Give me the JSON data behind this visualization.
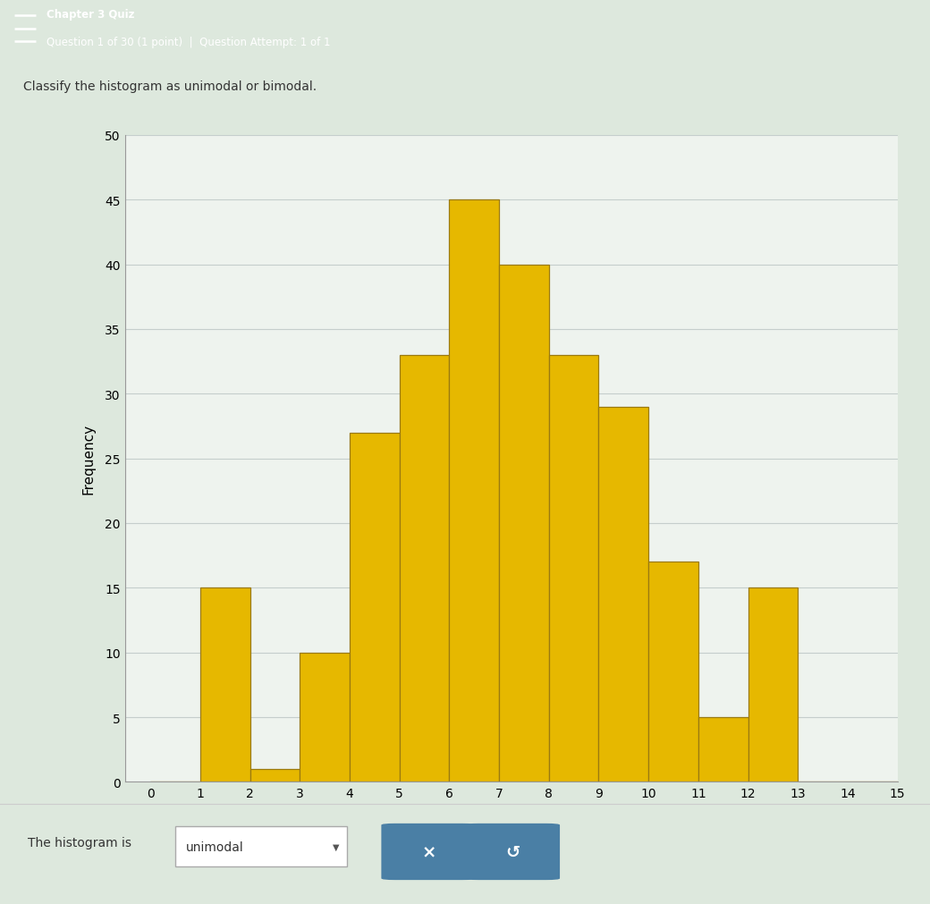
{
  "bar_values": [
    0,
    15,
    1,
    10,
    27,
    33,
    45,
    40,
    33,
    29,
    17,
    5,
    15,
    0,
    0
  ],
  "bar_color": "#E6B800",
  "bar_edge_color": "#9B7A10",
  "x_labels": [
    "0",
    "1",
    "2",
    "3",
    "4",
    "5",
    "6",
    "7",
    "8",
    "9",
    "10",
    "11",
    "12",
    "13",
    "14",
    "15"
  ],
  "y_ticks": [
    0,
    5,
    10,
    15,
    20,
    25,
    30,
    35,
    40,
    45,
    50
  ],
  "y_label": "Frequency",
  "y_max": 50,
  "header_bg": "#7A5C2E",
  "header_text1": "Chapter 3 Quiz",
  "header_text2": "Question 1 of 30 (1 point)  |  Question Attempt: 1 of 1",
  "question_text": "Classify the histogram as unimodal or bimodal.",
  "answer_text": "The histogram is",
  "answer_value": "unimodal",
  "bg_color": "#DDE8DD",
  "plot_bg": "#EEF3EE",
  "grid_color": "#C5CECC",
  "button_color": "#4A7FA5",
  "bottom_bg": "#F0F0F0"
}
